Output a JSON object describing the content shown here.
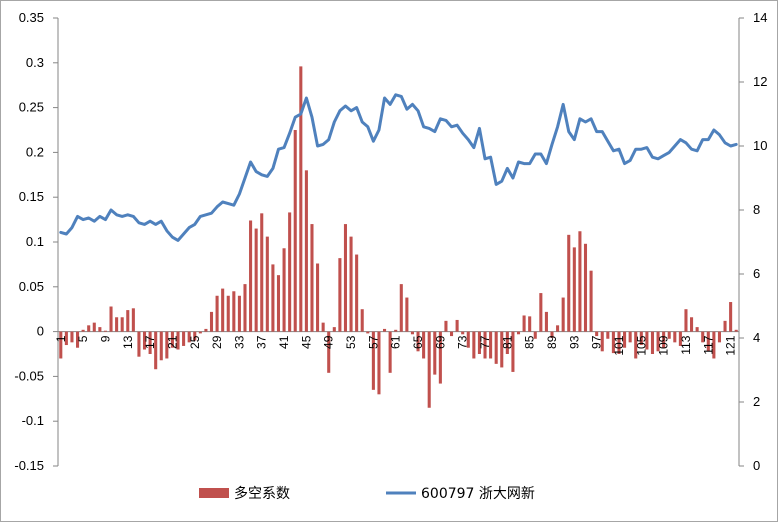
{
  "chart_data": {
    "type": "bar+line",
    "title": "",
    "x": {
      "categories_count": 122,
      "tick_labels": [
        "1",
        "5",
        "9",
        "13",
        "17",
        "21",
        "25",
        "29",
        "33",
        "37",
        "41",
        "45",
        "49",
        "53",
        "57",
        "61",
        "65",
        "69",
        "73",
        "77",
        "81",
        "85",
        "89",
        "93",
        "97",
        "101",
        "105",
        "109",
        "113",
        "117",
        "121"
      ],
      "tick_label_positions": [
        1,
        5,
        9,
        13,
        17,
        21,
        25,
        29,
        33,
        37,
        41,
        45,
        49,
        53,
        57,
        61,
        65,
        69,
        73,
        77,
        81,
        85,
        89,
        93,
        97,
        101,
        105,
        109,
        113,
        117,
        121
      ]
    },
    "y_left": {
      "range": [
        -0.15,
        0.35
      ],
      "ticks": [
        "-0.15",
        "-0.1",
        "-0.05",
        "0",
        "0.05",
        "0.1",
        "0.15",
        "0.2",
        "0.25",
        "0.3",
        "0.35"
      ],
      "tick_values": [
        -0.15,
        -0.1,
        -0.05,
        0,
        0.05,
        0.1,
        0.15,
        0.2,
        0.25,
        0.3,
        0.35
      ]
    },
    "y_right": {
      "range": [
        0,
        14
      ],
      "ticks": [
        "0",
        "2",
        "4",
        "6",
        "8",
        "10",
        "12",
        "14"
      ],
      "tick_values": [
        0,
        2,
        4,
        6,
        8,
        10,
        12,
        14
      ]
    },
    "grid": false,
    "legend_position": "bottom",
    "series": [
      {
        "name": "多空系数",
        "kind": "bar",
        "axis": "left",
        "color": "#c0504d",
        "values": [
          -0.03,
          -0.015,
          -0.012,
          -0.018,
          0.002,
          0.007,
          0.01,
          0.005,
          0.001,
          0.028,
          0.016,
          0.016,
          0.024,
          0.026,
          -0.028,
          -0.02,
          -0.025,
          -0.042,
          -0.032,
          -0.03,
          -0.018,
          -0.02,
          -0.016,
          -0.012,
          -0.01,
          -0.002,
          0.003,
          0.022,
          0.04,
          0.048,
          0.04,
          0.045,
          0.04,
          0.053,
          0.124,
          0.115,
          0.132,
          0.106,
          0.075,
          0.063,
          0.093,
          0.133,
          0.225,
          0.296,
          0.18,
          0.12,
          0.076,
          0.01,
          -0.046,
          0.005,
          0.082,
          0.12,
          0.106,
          0.086,
          0.025,
          -0.002,
          -0.065,
          -0.07,
          0.003,
          -0.046,
          0.002,
          0.053,
          0.038,
          -0.003,
          -0.022,
          -0.03,
          -0.085,
          -0.048,
          -0.058,
          0.012,
          -0.005,
          0.013,
          -0.003,
          -0.018,
          -0.03,
          -0.025,
          -0.03,
          -0.03,
          -0.036,
          -0.04,
          -0.025,
          -0.045,
          -0.003,
          0.018,
          0.017,
          -0.008,
          0.043,
          0.022,
          -0.007,
          0.007,
          0.038,
          0.108,
          0.094,
          0.112,
          0.098,
          0.068,
          -0.005,
          -0.022,
          -0.008,
          -0.024,
          -0.025,
          -0.018,
          -0.012,
          -0.03,
          -0.015,
          -0.02,
          -0.025,
          -0.022,
          -0.018,
          -0.008,
          -0.012,
          -0.016,
          0.025,
          0.016,
          0.005,
          -0.012,
          -0.022,
          -0.03,
          -0.012,
          0.012,
          0.033,
          0.002
        ]
      },
      {
        "name": "600797 浙大网新",
        "kind": "line",
        "axis": "right",
        "color": "#4f81bd",
        "values": [
          7.3,
          7.25,
          7.45,
          7.8,
          7.7,
          7.75,
          7.65,
          7.8,
          7.7,
          8.0,
          7.85,
          7.8,
          7.85,
          7.8,
          7.6,
          7.55,
          7.65,
          7.55,
          7.65,
          7.35,
          7.15,
          7.05,
          7.25,
          7.45,
          7.55,
          7.8,
          7.85,
          7.9,
          8.1,
          8.25,
          8.2,
          8.15,
          8.5,
          9.0,
          9.5,
          9.2,
          9.1,
          9.05,
          9.3,
          9.9,
          9.95,
          10.4,
          10.9,
          11.0,
          11.5,
          10.9,
          10.0,
          10.05,
          10.2,
          10.75,
          11.1,
          11.25,
          11.1,
          11.2,
          10.75,
          10.6,
          10.15,
          10.5,
          11.5,
          11.3,
          11.6,
          11.55,
          11.15,
          11.3,
          11.1,
          10.6,
          10.55,
          10.45,
          10.85,
          10.8,
          10.6,
          10.65,
          10.4,
          10.2,
          9.95,
          10.55,
          9.6,
          9.65,
          8.8,
          8.9,
          9.3,
          9.0,
          9.5,
          9.45,
          9.45,
          9.75,
          9.75,
          9.45,
          10.05,
          10.6,
          11.3,
          10.45,
          10.2,
          10.85,
          10.75,
          10.85,
          10.45,
          10.45,
          10.15,
          9.85,
          9.9,
          9.45,
          9.55,
          9.9,
          9.9,
          9.95,
          9.65,
          9.6,
          9.7,
          9.8,
          10.0,
          10.2,
          10.1,
          9.9,
          9.85,
          10.2,
          10.2,
          10.5,
          10.35,
          10.1,
          10.0,
          10.05
        ]
      }
    ]
  }
}
